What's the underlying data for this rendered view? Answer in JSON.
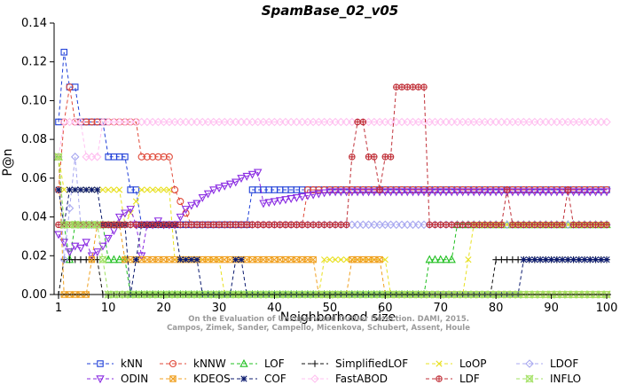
{
  "chart_data": {
    "type": "line",
    "title": "SpamBase_02_v05",
    "xlabel": "Neighborhood size",
    "ylabel": "P@n",
    "xlim": [
      0,
      100
    ],
    "ylim": [
      0,
      0.14
    ],
    "xticks": [
      1,
      10,
      20,
      30,
      40,
      50,
      60,
      70,
      80,
      90,
      100
    ],
    "yticks": [
      0.0,
      0.02,
      0.04,
      0.06,
      0.08,
      0.1,
      0.12,
      0.14
    ],
    "ytick_labels": [
      "0.00",
      "0.02",
      "0.04",
      "0.06",
      "0.08",
      "0.10",
      "0.12",
      "0.14"
    ],
    "watermark": [
      "Campos, Zimek, Sander, Campello, Micenkova, Schubert, Assent, Houle",
      "On the Evaluation of Unsupervised Outlier Detection. DAMI, 2015."
    ],
    "legend_position": "bottom",
    "series": [
      {
        "name": "kNN",
        "color": "#1f3fd8",
        "marker": "square",
        "points": [
          [
            1,
            0.089
          ],
          [
            2,
            0.125
          ],
          [
            3,
            0.107
          ],
          [
            4,
            0.107
          ],
          [
            5,
            0.089
          ],
          [
            8,
            0.089
          ],
          [
            9,
            0.089
          ],
          [
            10,
            0.071
          ],
          [
            13,
            0.071
          ],
          [
            14,
            0.054
          ],
          [
            15,
            0.054
          ],
          [
            16,
            0.036
          ],
          [
            35,
            0.036
          ],
          [
            36,
            0.054
          ],
          [
            100,
            0.054
          ]
        ]
      },
      {
        "name": "kNNW",
        "color": "#e04a3a",
        "marker": "circle",
        "points": [
          [
            1,
            0.054
          ],
          [
            2,
            0.089
          ],
          [
            3,
            0.107
          ],
          [
            4,
            0.089
          ],
          [
            10,
            0.089
          ],
          [
            15,
            0.089
          ],
          [
            16,
            0.071
          ],
          [
            21,
            0.071
          ],
          [
            22,
            0.054
          ],
          [
            25,
            0.036
          ],
          [
            45,
            0.036
          ],
          [
            46,
            0.054
          ],
          [
            100,
            0.054
          ]
        ]
      },
      {
        "name": "LOF",
        "color": "#22c022",
        "marker": "triangle",
        "points": [
          [
            1,
            0.071
          ],
          [
            2,
            0.036
          ],
          [
            3,
            0.018
          ],
          [
            4,
            0.036
          ],
          [
            9,
            0.036
          ],
          [
            10,
            0.018
          ],
          [
            13,
            0.018
          ],
          [
            14,
            0.0
          ],
          [
            67,
            0.0
          ],
          [
            68,
            0.018
          ],
          [
            72,
            0.018
          ],
          [
            73,
            0.036
          ],
          [
            100,
            0.036
          ]
        ]
      },
      {
        "name": "SimplifiedLOF",
        "color": "#111111",
        "marker": "plus",
        "points": [
          [
            1,
            0.0
          ],
          [
            2,
            0.018
          ],
          [
            8,
            0.018
          ],
          [
            9,
            0.0
          ],
          [
            70,
            0.0
          ],
          [
            79,
            0.0
          ],
          [
            80,
            0.018
          ],
          [
            100,
            0.018
          ]
        ]
      },
      {
        "name": "LoOP",
        "color": "#e8e020",
        "marker": "x",
        "points": [
          [
            1,
            0.071
          ],
          [
            2,
            0.054
          ],
          [
            12,
            0.054
          ],
          [
            13,
            0.036
          ],
          [
            16,
            0.054
          ],
          [
            21,
            0.054
          ],
          [
            22,
            0.018
          ],
          [
            30,
            0.018
          ],
          [
            31,
            0.0
          ],
          [
            48,
            0.0
          ],
          [
            49,
            0.018
          ],
          [
            60,
            0.018
          ],
          [
            61,
            0.0
          ],
          [
            74,
            0.0
          ],
          [
            75,
            0.018
          ],
          [
            76,
            0.036
          ],
          [
            100,
            0.036
          ]
        ]
      },
      {
        "name": "LDOF",
        "color": "#a8a8f0",
        "marker": "diamond",
        "points": [
          [
            1,
            0.071
          ],
          [
            2,
            0.018
          ],
          [
            4,
            0.071
          ],
          [
            5,
            0.036
          ],
          [
            10,
            0.036
          ],
          [
            15,
            0.036
          ],
          [
            16,
            0.036
          ],
          [
            100,
            0.036
          ]
        ]
      },
      {
        "name": "ODIN",
        "color": "#8a2be2",
        "marker": "triangle-down",
        "points": [
          [
            1,
            0.031
          ],
          [
            2,
            0.027
          ],
          [
            3,
            0.022
          ],
          [
            4,
            0.025
          ],
          [
            5,
            0.024
          ],
          [
            6,
            0.027
          ],
          [
            7,
            0.02
          ],
          [
            8,
            0.022
          ],
          [
            9,
            0.025
          ],
          [
            10,
            0.029
          ],
          [
            11,
            0.033
          ],
          [
            12,
            0.04
          ],
          [
            13,
            0.042
          ],
          [
            14,
            0.044
          ],
          [
            15,
            0.036
          ],
          [
            16,
            0.02
          ],
          [
            17,
            0.036
          ],
          [
            18,
            0.036
          ],
          [
            19,
            0.038
          ],
          [
            20,
            0.036
          ],
          [
            21,
            0.036
          ],
          [
            22,
            0.036
          ],
          [
            23,
            0.04
          ],
          [
            24,
            0.044
          ],
          [
            25,
            0.046
          ],
          [
            26,
            0.047
          ],
          [
            27,
            0.05
          ],
          [
            28,
            0.052
          ],
          [
            29,
            0.054
          ],
          [
            30,
            0.055
          ],
          [
            31,
            0.056
          ],
          [
            32,
            0.057
          ],
          [
            33,
            0.058
          ],
          [
            34,
            0.06
          ],
          [
            35,
            0.061
          ],
          [
            36,
            0.062
          ],
          [
            37,
            0.063
          ],
          [
            38,
            0.047
          ],
          [
            40,
            0.048
          ],
          [
            42,
            0.049
          ],
          [
            44,
            0.05
          ],
          [
            46,
            0.051
          ],
          [
            48,
            0.052
          ],
          [
            50,
            0.053
          ],
          [
            52,
            0.053
          ],
          [
            54,
            0.053
          ],
          [
            100,
            0.053
          ]
        ]
      },
      {
        "name": "KDEOS",
        "color": "#f0a020",
        "marker": "square-x",
        "points": [
          [
            1,
            0.071
          ],
          [
            2,
            0.0
          ],
          [
            6,
            0.0
          ],
          [
            7,
            0.018
          ],
          [
            8,
            0.036
          ],
          [
            12,
            0.036
          ],
          [
            13,
            0.018
          ],
          [
            47,
            0.018
          ],
          [
            48,
            0.0
          ],
          [
            53,
            0.0
          ],
          [
            54,
            0.018
          ],
          [
            59,
            0.018
          ],
          [
            60,
            0.0
          ],
          [
            80,
            0.0
          ],
          [
            81,
            0.0
          ],
          [
            100,
            0.0
          ]
        ]
      },
      {
        "name": "COF",
        "color": "#0b1a6e",
        "marker": "star",
        "points": [
          [
            1,
            0.054
          ],
          [
            2,
            0.036
          ],
          [
            3,
            0.054
          ],
          [
            8,
            0.054
          ],
          [
            9,
            0.036
          ],
          [
            13,
            0.036
          ],
          [
            14,
            0.0
          ],
          [
            16,
            0.036
          ],
          [
            22,
            0.036
          ],
          [
            23,
            0.018
          ],
          [
            24,
            0.018
          ],
          [
            26,
            0.018
          ],
          [
            27,
            0.0
          ],
          [
            32,
            0.0
          ],
          [
            33,
            0.018
          ],
          [
            34,
            0.018
          ],
          [
            35,
            0.0
          ],
          [
            84,
            0.0
          ],
          [
            85,
            0.018
          ],
          [
            86,
            0.018
          ],
          [
            100,
            0.018
          ]
        ]
      },
      {
        "name": "FastABOD",
        "color": "#ffc0f0",
        "marker": "diamond",
        "points": [
          [
            1,
            0.071
          ],
          [
            2,
            0.089
          ],
          [
            5,
            0.089
          ],
          [
            6,
            0.071
          ],
          [
            8,
            0.071
          ],
          [
            9,
            0.089
          ],
          [
            100,
            0.089
          ]
        ]
      },
      {
        "name": "LDF",
        "color": "#c03038",
        "marker": "circle-plus",
        "points": [
          [
            1,
            0.036
          ],
          [
            35,
            0.036
          ],
          [
            53,
            0.036
          ],
          [
            54,
            0.071
          ],
          [
            55,
            0.089
          ],
          [
            56,
            0.089
          ],
          [
            57,
            0.071
          ],
          [
            58,
            0.071
          ],
          [
            59,
            0.054
          ],
          [
            60,
            0.071
          ],
          [
            61,
            0.071
          ],
          [
            62,
            0.107
          ],
          [
            67,
            0.107
          ],
          [
            68,
            0.036
          ],
          [
            71,
            0.036
          ],
          [
            72,
            0.036
          ],
          [
            81,
            0.036
          ],
          [
            82,
            0.054
          ],
          [
            83,
            0.036
          ],
          [
            87,
            0.036
          ],
          [
            88,
            0.036
          ],
          [
            92,
            0.036
          ],
          [
            93,
            0.054
          ],
          [
            94,
            0.036
          ],
          [
            100,
            0.036
          ]
        ]
      },
      {
        "name": "INFLO",
        "color": "#a0e060",
        "marker": "x-square",
        "points": [
          [
            1,
            0.071
          ],
          [
            2,
            0.036
          ],
          [
            3,
            0.036
          ],
          [
            8,
            0.036
          ],
          [
            9,
            0.018
          ],
          [
            10,
            0.0
          ],
          [
            100,
            0.0
          ]
        ]
      }
    ]
  }
}
